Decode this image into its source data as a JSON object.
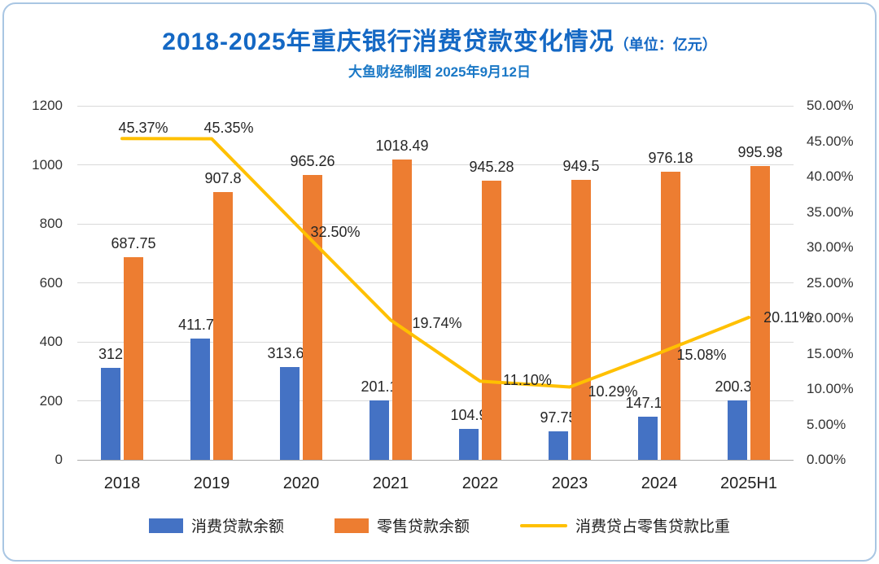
{
  "title": {
    "main": "2018-2025年重庆银行消费贷款变化情况",
    "unit": "（单位：亿元）",
    "subtitle": "大鱼财经制图 2025年9月12日"
  },
  "colors": {
    "title": "#1468c4",
    "subtitle": "#1a78c6",
    "bar_consumer": "#4472C4",
    "bar_retail": "#ED7D31",
    "line_ratio": "#FFC000",
    "grid": "#d9d9d9",
    "axis_line": "#ababab",
    "border": "#a9c6e3",
    "text": "#262626"
  },
  "chart_data": {
    "type": "bar+line",
    "title": "2018-2025年重庆银行消费贷款变化情况（单位：亿元）",
    "subtitle": "大鱼财经制图 2025年9月12日",
    "categories": [
      "2018",
      "2019",
      "2020",
      "2021",
      "2022",
      "2023",
      "2024",
      "2025H1"
    ],
    "series": [
      {
        "name": "消费贷款余额",
        "type": "bar",
        "axis": "left",
        "color_key": "bar_consumer",
        "values": [
          312,
          411.72,
          313.67,
          201.1,
          104.9,
          97.75,
          147.19,
          200.34
        ],
        "labels": [
          "312",
          "411.72",
          "313.67",
          "201.1",
          "104.9",
          "97.75",
          "147.19",
          "200.34"
        ]
      },
      {
        "name": "零售贷款余额",
        "type": "bar",
        "axis": "left",
        "color_key": "bar_retail",
        "values": [
          687.75,
          907.8,
          965.26,
          1018.49,
          945.28,
          949.5,
          976.18,
          995.98
        ],
        "labels": [
          "687.75",
          "907.8",
          "965.26",
          "1018.49",
          "945.28",
          "949.5",
          "976.18",
          "995.98"
        ]
      },
      {
        "name": "消费贷占零售贷款比重",
        "type": "line",
        "axis": "right",
        "color_key": "line_ratio",
        "values_pct": [
          45.37,
          45.35,
          32.5,
          19.74,
          11.1,
          10.29,
          15.08,
          20.11
        ],
        "labels": [
          "45.37%",
          "45.35%",
          "32.50%",
          "19.74%",
          "11.10%",
          "10.29%",
          "15.08%",
          "20.11%"
        ]
      }
    ],
    "left_axis": {
      "min": 0,
      "max": 1200,
      "step": 200,
      "ticks": [
        "0",
        "200",
        "400",
        "600",
        "800",
        "1000",
        "1200"
      ]
    },
    "right_axis": {
      "min": 0,
      "max": 50,
      "step": 5,
      "ticks": [
        "0.00%",
        "5.00%",
        "10.00%",
        "15.00%",
        "20.00%",
        "25.00%",
        "30.00%",
        "35.00%",
        "40.00%",
        "45.00%",
        "50.00%"
      ]
    },
    "legend": [
      "消费贷款余额",
      "零售贷款余额",
      "消费贷占零售贷款比重"
    ],
    "legend_position": "bottom",
    "grid": true
  }
}
